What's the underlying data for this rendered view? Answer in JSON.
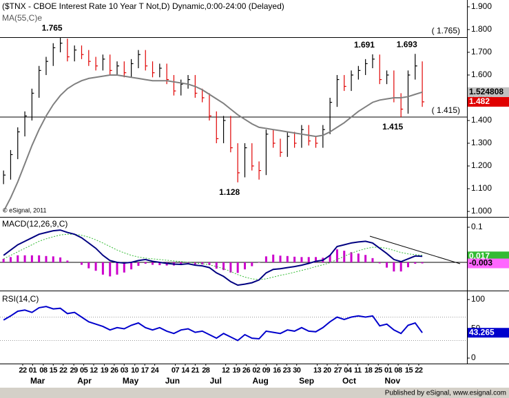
{
  "chart_data": [
    {
      "type": "ohlc",
      "title": "($TNX - CBOE Interest Rate 10 Year T Not,D) Dynamic,0:00-24:00 (Delayed)",
      "source": "© eSignal, 2011",
      "up_color": "#000000",
      "down_color": "#e00000",
      "high": [
        1.18,
        1.27,
        1.37,
        1.44,
        1.54,
        1.64,
        1.68,
        1.74,
        1.765,
        1.76,
        1.73,
        1.73,
        1.71,
        1.68,
        1.69,
        1.69,
        1.66,
        1.66,
        1.67,
        1.71,
        1.71,
        1.66,
        1.65,
        1.65,
        1.6,
        1.58,
        1.6,
        1.6,
        1.54,
        1.52,
        1.44,
        1.42,
        1.42,
        1.3,
        1.3,
        1.3,
        1.22,
        1.36,
        1.36,
        1.32,
        1.35,
        1.35,
        1.38,
        1.38,
        1.33,
        1.38,
        1.5,
        1.6,
        1.6,
        1.62,
        1.64,
        1.67,
        1.691,
        1.69,
        1.62,
        1.62,
        1.52,
        1.62,
        1.693,
        1.66
      ],
      "low": [
        1.12,
        1.14,
        1.23,
        1.33,
        1.4,
        1.5,
        1.6,
        1.64,
        1.7,
        1.66,
        1.66,
        1.67,
        1.64,
        1.62,
        1.62,
        1.6,
        1.6,
        1.59,
        1.59,
        1.63,
        1.62,
        1.59,
        1.59,
        1.56,
        1.51,
        1.51,
        1.54,
        1.5,
        1.48,
        1.4,
        1.3,
        1.3,
        1.26,
        1.128,
        1.15,
        1.18,
        1.14,
        1.16,
        1.28,
        1.24,
        1.24,
        1.28,
        1.28,
        1.29,
        1.28,
        1.28,
        1.34,
        1.46,
        1.53,
        1.53,
        1.58,
        1.6,
        1.63,
        1.56,
        1.56,
        1.48,
        1.415,
        1.43,
        1.58,
        1.46
      ],
      "close": [
        1.16,
        1.25,
        1.35,
        1.42,
        1.52,
        1.62,
        1.66,
        1.72,
        1.74,
        1.68,
        1.71,
        1.69,
        1.66,
        1.64,
        1.67,
        1.62,
        1.64,
        1.61,
        1.65,
        1.69,
        1.64,
        1.61,
        1.63,
        1.58,
        1.53,
        1.56,
        1.58,
        1.52,
        1.5,
        1.42,
        1.32,
        1.4,
        1.28,
        1.17,
        1.28,
        1.2,
        1.18,
        1.34,
        1.3,
        1.26,
        1.33,
        1.3,
        1.36,
        1.31,
        1.3,
        1.36,
        1.48,
        1.58,
        1.55,
        1.6,
        1.62,
        1.65,
        1.67,
        1.58,
        1.6,
        1.5,
        1.45,
        1.6,
        1.64,
        1.482
      ],
      "series": [
        {
          "name": "MA(55,C)e",
          "color": "#7f7f7f",
          "values": [
            1.0,
            1.06,
            1.13,
            1.21,
            1.29,
            1.36,
            1.42,
            1.47,
            1.51,
            1.54,
            1.56,
            1.575,
            1.585,
            1.59,
            1.595,
            1.6,
            1.6,
            1.595,
            1.59,
            1.585,
            1.58,
            1.575,
            1.575,
            1.575,
            1.57,
            1.565,
            1.56,
            1.55,
            1.535,
            1.515,
            1.495,
            1.475,
            1.45,
            1.425,
            1.405,
            1.385,
            1.37,
            1.365,
            1.36,
            1.355,
            1.35,
            1.345,
            1.34,
            1.335,
            1.33,
            1.335,
            1.35,
            1.37,
            1.39,
            1.415,
            1.44,
            1.46,
            1.48,
            1.49,
            1.495,
            1.5,
            1.5,
            1.505,
            1.515,
            1.524808
          ]
        }
      ],
      "ylim": [
        0.982,
        1.93
      ],
      "yticks": [
        {
          "value": 1.0,
          "label": "1.000"
        },
        {
          "value": 1.1,
          "label": "1.100"
        },
        {
          "value": 1.2,
          "label": "1.200"
        },
        {
          "value": 1.3,
          "label": "1.300"
        },
        {
          "value": 1.4,
          "label": "1.400"
        },
        {
          "value": 1.5,
          "label": "1.500"
        },
        {
          "value": 1.6,
          "label": "1.600"
        },
        {
          "value": 1.7,
          "label": "1.700"
        },
        {
          "value": 1.8,
          "label": "1.800"
        },
        {
          "value": 1.9,
          "label": "1.900"
        }
      ],
      "levels": [
        {
          "value": 1.765,
          "label": "( 1.765)"
        },
        {
          "value": 1.415,
          "label": "( 1.415)"
        }
      ],
      "annotations": [
        {
          "value": 1.765,
          "label": "1.765"
        },
        {
          "value": 1.691,
          "label": "1.691"
        },
        {
          "value": 1.693,
          "label": "1.693"
        },
        {
          "value": 1.128,
          "label": "1.128"
        },
        {
          "value": 1.415,
          "label": "1.415"
        }
      ]
    },
    {
      "type": "macd",
      "title": "MACD(12,26,9,C)",
      "macd_color": "#000080",
      "signal_color": "#33bb33",
      "histogram_color": "#cc00cc",
      "macd": [
        0.02,
        0.035,
        0.05,
        0.06,
        0.07,
        0.08,
        0.085,
        0.09,
        0.092,
        0.085,
        0.08,
        0.07,
        0.055,
        0.04,
        0.02,
        0.005,
        0.0,
        -0.002,
        0.0,
        0.005,
        0.008,
        0.003,
        0.0,
        -0.003,
        -0.005,
        -0.006,
        -0.004,
        -0.008,
        -0.01,
        -0.015,
        -0.03,
        -0.04,
        -0.055,
        -0.065,
        -0.062,
        -0.058,
        -0.05,
        -0.03,
        -0.02,
        -0.018,
        -0.015,
        -0.012,
        -0.008,
        -0.003,
        0.003,
        0.006,
        0.02,
        0.045,
        0.05,
        0.055,
        0.058,
        0.06,
        0.055,
        0.04,
        0.025,
        0.008,
        0.002,
        0.01,
        0.018,
        0.017
      ],
      "signal": [
        0.01,
        0.02,
        0.03,
        0.04,
        0.05,
        0.06,
        0.067,
        0.073,
        0.078,
        0.08,
        0.08,
        0.077,
        0.072,
        0.064,
        0.055,
        0.045,
        0.035,
        0.027,
        0.02,
        0.015,
        0.012,
        0.01,
        0.008,
        0.006,
        0.004,
        0.002,
        0.0,
        -0.002,
        -0.004,
        -0.007,
        -0.012,
        -0.018,
        -0.026,
        -0.035,
        -0.042,
        -0.047,
        -0.049,
        -0.047,
        -0.042,
        -0.037,
        -0.033,
        -0.028,
        -0.023,
        -0.018,
        -0.012,
        -0.007,
        -0.001,
        0.008,
        0.017,
        0.026,
        0.033,
        0.039,
        0.043,
        0.043,
        0.04,
        0.034,
        0.028,
        0.024,
        0.022,
        0.02
      ],
      "histogram": [
        0.01,
        0.015,
        0.02,
        0.02,
        0.02,
        0.02,
        0.018,
        0.017,
        0.014,
        0.005,
        0.0,
        -0.007,
        -0.017,
        -0.024,
        -0.035,
        -0.04,
        -0.035,
        -0.029,
        -0.02,
        -0.01,
        -0.004,
        -0.007,
        -0.008,
        -0.009,
        -0.009,
        -0.008,
        -0.004,
        -0.006,
        -0.006,
        -0.008,
        -0.018,
        -0.022,
        -0.029,
        -0.03,
        -0.02,
        -0.011,
        -0.001,
        0.017,
        0.022,
        0.019,
        0.018,
        0.016,
        0.015,
        0.015,
        0.015,
        0.013,
        0.021,
        0.037,
        0.033,
        0.029,
        0.025,
        0.021,
        0.012,
        -0.003,
        -0.015,
        -0.026,
        -0.026,
        -0.014,
        -0.004,
        -0.003
      ],
      "ylim": [
        -0.0765,
        0.1235
      ],
      "yticks": [
        0.1
      ]
    },
    {
      "type": "line",
      "title": "RSI(14,C)",
      "color": "#0000cc",
      "values": [
        65,
        72,
        80,
        82,
        78,
        86,
        88,
        84,
        85,
        76,
        78,
        70,
        62,
        58,
        54,
        48,
        52,
        50,
        56,
        60,
        52,
        48,
        52,
        46,
        42,
        48,
        50,
        44,
        46,
        40,
        34,
        42,
        36,
        30,
        40,
        34,
        33,
        46,
        44,
        42,
        48,
        46,
        52,
        46,
        45,
        52,
        62,
        70,
        66,
        70,
        72,
        70,
        72,
        55,
        58,
        48,
        42,
        56,
        60,
        43.265
      ],
      "ylim": [
        -8.2,
        112.9
      ],
      "yticks": [
        0,
        50,
        100
      ],
      "levels": [
        30,
        70
      ],
      "xlim": [
        -0.5,
        65.3
      ],
      "xticks": [
        {
          "value": 2.7,
          "label": "22"
        },
        {
          "value": 4.1,
          "label": "01"
        },
        {
          "value": 5.6,
          "label": "08"
        },
        {
          "value": 7.0,
          "label": "15"
        },
        {
          "value": 8.4,
          "label": "22"
        },
        {
          "value": 9.9,
          "label": "29"
        },
        {
          "value": 11.3,
          "label": "05"
        },
        {
          "value": 12.7,
          "label": "12"
        },
        {
          "value": 14.2,
          "label": "19"
        },
        {
          "value": 15.6,
          "label": "26"
        },
        {
          "value": 17.0,
          "label": "03"
        },
        {
          "value": 18.5,
          "label": "10"
        },
        {
          "value": 19.9,
          "label": "17"
        },
        {
          "value": 21.3,
          "label": "24"
        },
        {
          "value": 24.2,
          "label": "07"
        },
        {
          "value": 25.6,
          "label": "14"
        },
        {
          "value": 27.0,
          "label": "21"
        },
        {
          "value": 28.5,
          "label": "28"
        },
        {
          "value": 31.3,
          "label": "12"
        },
        {
          "value": 32.8,
          "label": "19"
        },
        {
          "value": 34.2,
          "label": "26"
        },
        {
          "value": 35.6,
          "label": "02"
        },
        {
          "value": 37.0,
          "label": "09"
        },
        {
          "value": 38.5,
          "label": "16"
        },
        {
          "value": 39.9,
          "label": "23"
        },
        {
          "value": 41.3,
          "label": "30"
        },
        {
          "value": 44.2,
          "label": "13"
        },
        {
          "value": 45.6,
          "label": "20"
        },
        {
          "value": 47.1,
          "label": "27"
        },
        {
          "value": 48.5,
          "label": "04"
        },
        {
          "value": 49.9,
          "label": "11"
        },
        {
          "value": 51.4,
          "label": "18"
        },
        {
          "value": 52.8,
          "label": "25"
        },
        {
          "value": 54.2,
          "label": "01"
        },
        {
          "value": 55.6,
          "label": "08"
        },
        {
          "value": 57.1,
          "label": "15"
        },
        {
          "value": 58.5,
          "label": "22"
        }
      ],
      "xticks_major": [
        {
          "value": 4.8,
          "label": "Mar"
        },
        {
          "value": 11.4,
          "label": "Apr"
        },
        {
          "value": 17.9,
          "label": "May"
        },
        {
          "value": 23.8,
          "label": "Jun"
        },
        {
          "value": 29.9,
          "label": "Jul"
        },
        {
          "value": 36.2,
          "label": "Aug"
        },
        {
          "value": 42.7,
          "label": "Sep"
        },
        {
          "value": 48.7,
          "label": "Oct"
        },
        {
          "value": 54.8,
          "label": "Nov"
        }
      ]
    }
  ],
  "footer": "Published by eSignal, www.esignal.com"
}
